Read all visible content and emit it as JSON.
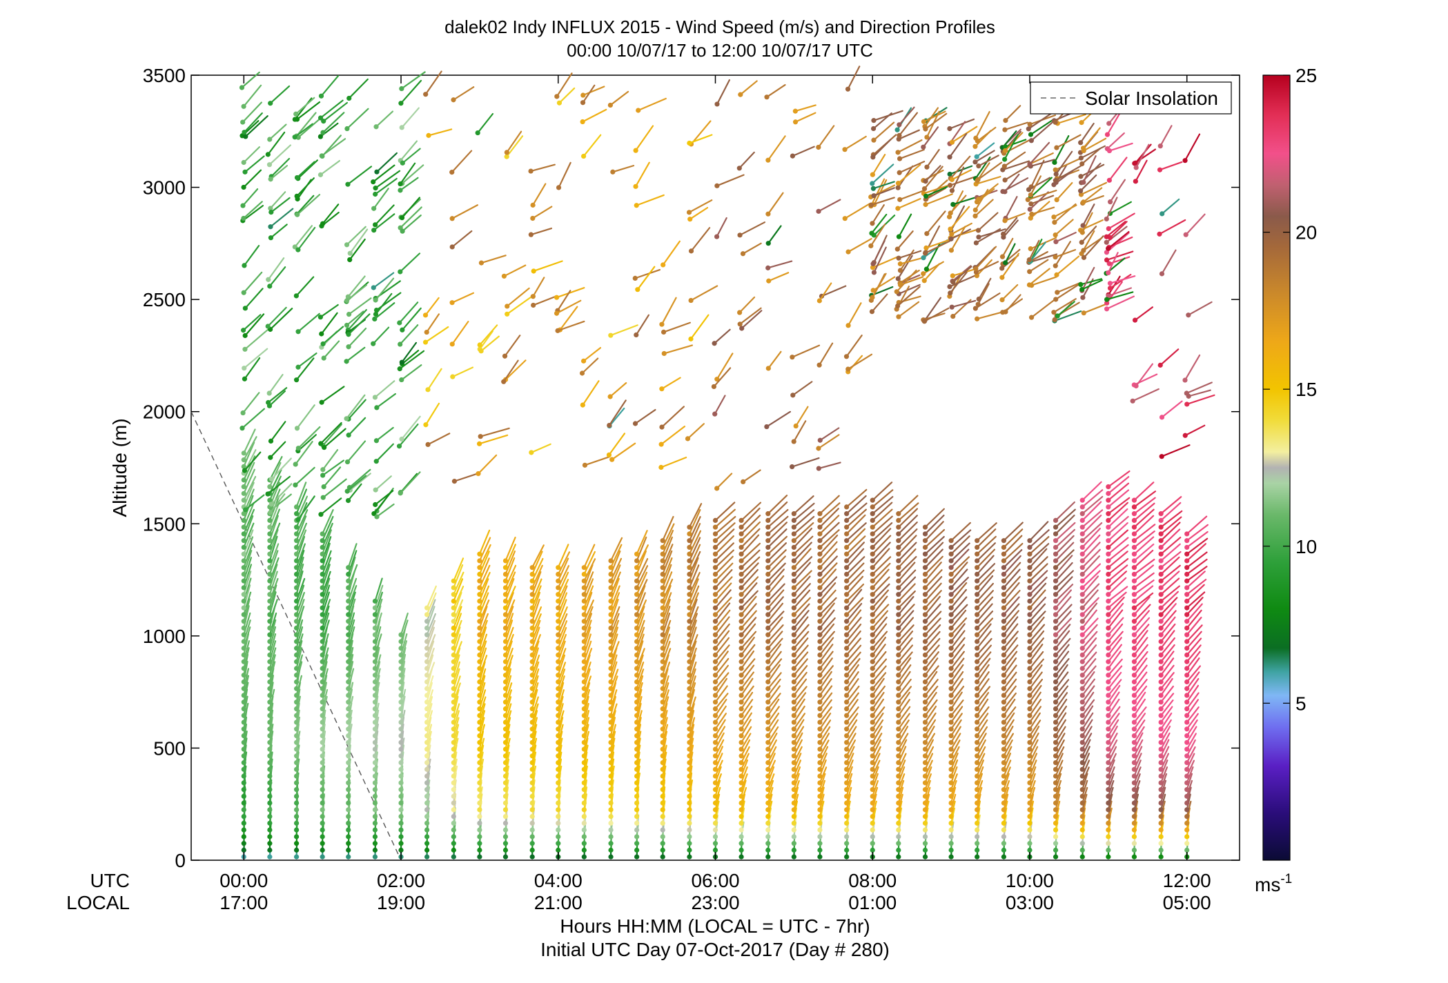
{
  "chart_data": {
    "type": "scatter",
    "title": [
      "dalek02 Indy INFLUX 2015 - Wind Speed (m/s) and Direction Profiles",
      "00:00 10/07/17 to 12:00 10/07/17  UTC"
    ],
    "ylabel": "Altitude (m)",
    "xlabel": [
      "Hours HH:MM  (LOCAL = UTC - 7hr)",
      "Initial UTC Day 07-Oct-2017 (Day # 280)"
    ],
    "row_labels": {
      "utc": "UTC",
      "local": "LOCAL"
    },
    "x_ticks_utc": [
      "00:00",
      "02:00",
      "04:00",
      "06:00",
      "08:00",
      "10:00",
      "12:00"
    ],
    "x_ticks_local": [
      "17:00",
      "19:00",
      "21:00",
      "23:00",
      "01:00",
      "03:00",
      "05:00"
    ],
    "x_tick_hours": [
      0,
      2,
      4,
      6,
      8,
      10,
      12
    ],
    "xlim_hours": [
      -0.67,
      12.67
    ],
    "y_ticks": [
      "0",
      "500",
      "1000",
      "1500",
      "2000",
      "2500",
      "3000",
      "3500"
    ],
    "ylim": [
      0,
      3500
    ],
    "colorbar": {
      "range": [
        0,
        25
      ],
      "ticks": [
        "5",
        "10",
        "15",
        "20",
        "25"
      ],
      "unit": "ms",
      "unit_sup": "-1"
    },
    "legend": {
      "label": "Solar Insolation",
      "placement": "top-right",
      "style": "dashed"
    },
    "solar_insolation_line": {
      "x_hours": [
        -0.67,
        2.0
      ],
      "y_m": [
        2000,
        0
      ]
    },
    "profile_times_hours": [
      0,
      0.33,
      0.67,
      1.0,
      1.33,
      1.67,
      2.0,
      2.33,
      2.67,
      3.0,
      3.33,
      3.67,
      4.0,
      4.33,
      4.67,
      5.0,
      5.33,
      5.67,
      6.0,
      6.33,
      6.67,
      7.0,
      7.33,
      7.67,
      8.0,
      8.33,
      8.67,
      9.0,
      9.33,
      9.67,
      10.0,
      10.33,
      10.67,
      11.0,
      11.33,
      11.67,
      12.0
    ],
    "speed_profile_samples": [
      {
        "hour": 0.0,
        "surface_speed": 5,
        "speed_at_500m": 10.5,
        "speed_at_1000m": 11,
        "top_m": 1830
      },
      {
        "hour": 1.0,
        "surface_speed": 5,
        "speed_at_500m": 12,
        "speed_at_1000m": 10,
        "top_m": 1480
      },
      {
        "hour": 2.0,
        "surface_speed": 5,
        "speed_at_500m": 12.5,
        "speed_at_1000m": 11,
        "top_m": 1020
      },
      {
        "hour": 3.0,
        "surface_speed": 5,
        "speed_at_500m": 15,
        "speed_at_1000m": 16,
        "top_m": 1380
      },
      {
        "hour": 4.0,
        "surface_speed": 5,
        "speed_at_500m": 15.5,
        "speed_at_1000m": 16.5,
        "top_m": 1310
      },
      {
        "hour": 5.0,
        "surface_speed": 5,
        "speed_at_500m": 16,
        "speed_at_1000m": 17.5,
        "top_m": 1380
      },
      {
        "hour": 6.0,
        "surface_speed": 5,
        "speed_at_500m": 17,
        "speed_at_1000m": 19,
        "top_m": 1540
      },
      {
        "hour": 7.0,
        "surface_speed": 5,
        "speed_at_500m": 17.5,
        "speed_at_1000m": 19.5,
        "top_m": 1550
      },
      {
        "hour": 8.0,
        "surface_speed": 5,
        "speed_at_500m": 18,
        "speed_at_1000m": 19.5,
        "top_m": 1620
      },
      {
        "hour": 9.0,
        "surface_speed": 5,
        "speed_at_500m": 18,
        "speed_at_1000m": 20,
        "top_m": 1450
      },
      {
        "hour": 10.0,
        "surface_speed": 5,
        "speed_at_500m": 18.5,
        "speed_at_1000m": 20,
        "top_m": 1450
      },
      {
        "hour": 11.0,
        "surface_speed": 5,
        "speed_at_500m": 22,
        "speed_at_1000m": 23,
        "top_m": 1690
      },
      {
        "hour": 12.0,
        "surface_speed": 5,
        "speed_at_500m": 22.5,
        "speed_at_1000m": 23.5,
        "top_m": 1480
      }
    ]
  }
}
